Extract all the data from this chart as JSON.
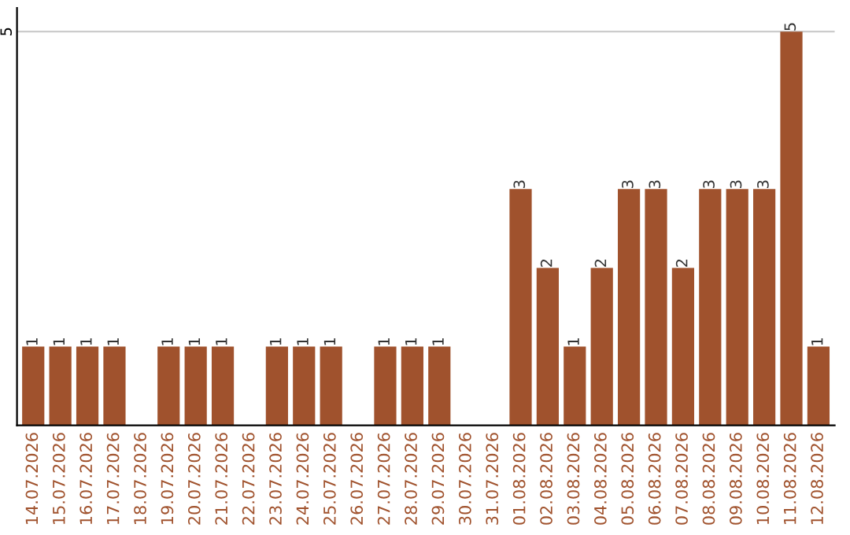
{
  "chart_data": {
    "type": "bar",
    "categories": [
      "14.07.2026",
      "15.07.2026",
      "16.07.2026",
      "17.07.2026",
      "18.07.2026",
      "19.07.2026",
      "20.07.2026",
      "21.07.2026",
      "22.07.2026",
      "23.07.2026",
      "24.07.2026",
      "25.07.2026",
      "26.07.2026",
      "27.07.2026",
      "28.07.2026",
      "29.07.2026",
      "30.07.2026",
      "31.07.2026",
      "01.08.2026",
      "02.08.2026",
      "03.08.2026",
      "04.08.2026",
      "05.08.2026",
      "06.08.2026",
      "07.08.2026",
      "08.08.2026",
      "09.08.2026",
      "10.08.2026",
      "11.08.2026",
      "12.08.2026"
    ],
    "values": [
      1,
      1,
      1,
      1,
      0,
      1,
      1,
      1,
      0,
      1,
      1,
      1,
      0,
      1,
      1,
      1,
      0,
      0,
      3,
      2,
      1,
      2,
      3,
      3,
      2,
      3,
      3,
      3,
      5,
      1
    ],
    "value_labels": [
      "1",
      "1",
      "1",
      "1",
      null,
      "1",
      "1",
      "1",
      null,
      "1",
      "1",
      "1",
      null,
      "1",
      "1",
      "1",
      null,
      null,
      "3",
      "2",
      "1",
      "2",
      "3",
      "3",
      "2",
      "3",
      "3",
      "3",
      "5",
      "1"
    ],
    "color": "#a0522d",
    "ylim": [
      0,
      5.3
    ],
    "yticks": [
      5
    ],
    "grid": "y"
  }
}
